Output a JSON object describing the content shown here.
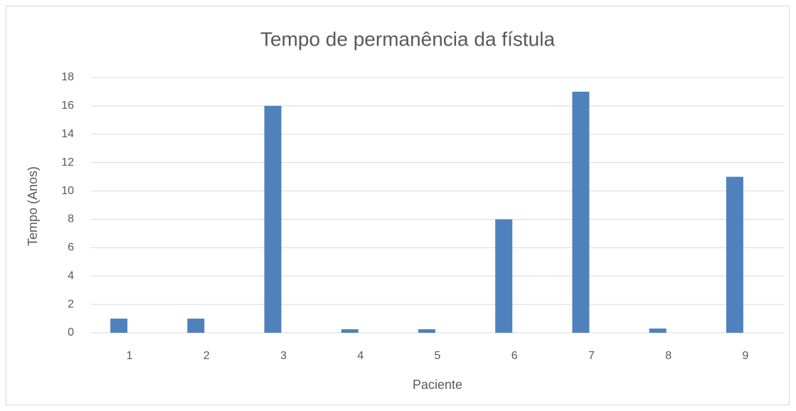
{
  "chart_data": {
    "type": "bar",
    "title": "Tempo de permanência da fístula",
    "x_label": "Paciente",
    "y_label": "Tempo (Anos)",
    "categories": [
      "1",
      "2",
      "3",
      "4",
      "5",
      "6",
      "7",
      "8",
      "9"
    ],
    "values": [
      1,
      1,
      16,
      0.25,
      0.25,
      8,
      17,
      0.3,
      11
    ],
    "color": "#4f81bd",
    "ylim": [
      0,
      18
    ],
    "yticks": [
      0,
      2,
      4,
      6,
      8,
      10,
      12,
      14,
      16,
      18
    ],
    "grid": true
  }
}
